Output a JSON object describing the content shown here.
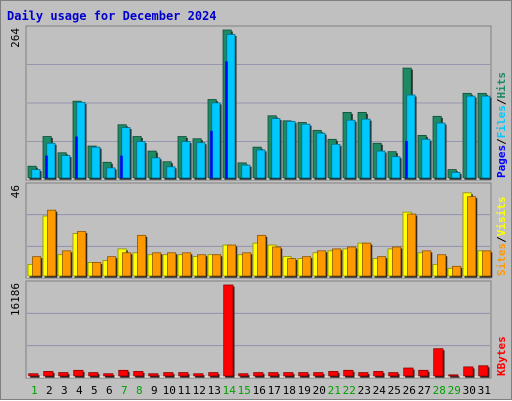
{
  "title": "Daily usage for December 2024",
  "chart_data": [
    {
      "type": "bar",
      "panel": "hits-files-pages",
      "ymax_label": "264",
      "ylim": [
        0,
        264
      ],
      "categories": [
        "1",
        "2",
        "3",
        "4",
        "5",
        "6",
        "7",
        "8",
        "9",
        "10",
        "11",
        "12",
        "13",
        "14",
        "15",
        "16",
        "17",
        "18",
        "19",
        "20",
        "21",
        "22",
        "23",
        "24",
        "25",
        "26",
        "27",
        "28",
        "29",
        "30",
        "31"
      ],
      "series": [
        {
          "name": "Hits",
          "color": "#1e8a64",
          "values": [
            21,
            74,
            45,
            137,
            57,
            28,
            95,
            74,
            48,
            29,
            74,
            70,
            140,
            264,
            27,
            55,
            111,
            102,
            99,
            85,
            69,
            117,
            117,
            62,
            47,
            196,
            76,
            110,
            15,
            151,
            151
          ]
        },
        {
          "name": "Files",
          "color": "#00c8ff",
          "values": [
            15,
            62,
            40,
            135,
            55,
            18,
            90,
            65,
            36,
            20,
            65,
            63,
            134,
            256,
            23,
            50,
            106,
            101,
            96,
            80,
            60,
            103,
            105,
            48,
            38,
            148,
            69,
            98,
            10,
            146,
            146
          ]
        },
        {
          "name": "Pages",
          "color": "#0000ff",
          "values": [
            0,
            40,
            0,
            74,
            0,
            0,
            40,
            0,
            0,
            0,
            0,
            0,
            84,
            208,
            0,
            0,
            0,
            0,
            0,
            0,
            0,
            0,
            0,
            0,
            0,
            66,
            0,
            0,
            0,
            0,
            0
          ]
        }
      ],
      "side_labels": [
        {
          "text": "Pages",
          "color": "#0000ff"
        },
        {
          "text": "/",
          "color": "#000000"
        },
        {
          "text": "Files",
          "color": "#00c8ff"
        },
        {
          "text": "/",
          "color": "#000000"
        },
        {
          "text": "Hits",
          "color": "#1e8a64"
        }
      ]
    },
    {
      "type": "bar",
      "panel": "visits-sites",
      "ymax_label": "46",
      "ylim": [
        0,
        46
      ],
      "categories": [
        "1",
        "2",
        "3",
        "4",
        "5",
        "6",
        "7",
        "8",
        "9",
        "10",
        "11",
        "12",
        "13",
        "14",
        "15",
        "16",
        "17",
        "18",
        "19",
        "20",
        "21",
        "22",
        "23",
        "24",
        "25",
        "26",
        "27",
        "28",
        "29",
        "30",
        "31"
      ],
      "series": [
        {
          "name": "Visits",
          "color": "#ffff00",
          "values": [
            6,
            31,
            11,
            22,
            7,
            8,
            14,
            12,
            11,
            11,
            11,
            10,
            11,
            16,
            11,
            17,
            16,
            10,
            9,
            12,
            13,
            14,
            17,
            9,
            14,
            33,
            12,
            6,
            4,
            43,
            13
          ]
        },
        {
          "name": "Sites",
          "color": "#ff9900",
          "values": [
            10,
            34,
            13,
            23,
            7,
            10,
            12,
            21,
            12,
            12,
            12,
            11,
            11,
            16,
            12,
            21,
            15,
            9,
            10,
            13,
            14,
            15,
            17,
            10,
            15,
            32,
            13,
            11,
            5,
            41,
            13
          ]
        }
      ],
      "side_labels": [
        {
          "text": "Sites",
          "color": "#ff9900"
        },
        {
          "text": "/",
          "color": "#000000"
        },
        {
          "text": "Visits",
          "color": "#ffff00"
        }
      ]
    },
    {
      "type": "bar",
      "panel": "kbytes",
      "ymax_label": "16186",
      "ylim": [
        0,
        16186
      ],
      "categories": [
        "1",
        "2",
        "3",
        "4",
        "5",
        "6",
        "7",
        "8",
        "9",
        "10",
        "11",
        "12",
        "13",
        "14",
        "15",
        "16",
        "17",
        "18",
        "19",
        "20",
        "21",
        "22",
        "23",
        "24",
        "25",
        "26",
        "27",
        "28",
        "29",
        "30",
        "31"
      ],
      "series": [
        {
          "name": "KBytes",
          "color": "#ff0000",
          "values": [
            404,
            809,
            607,
            1011,
            607,
            404,
            1011,
            809,
            404,
            607,
            607,
            404,
            607,
            16186,
            404,
            607,
            607,
            607,
            607,
            607,
            809,
            1011,
            607,
            809,
            607,
            1416,
            1011,
            4856,
            202,
            1619,
            1821
          ]
        }
      ],
      "side_labels": [
        {
          "text": "KBytes",
          "color": "#ff0000"
        }
      ]
    }
  ],
  "xaxis": {
    "labels": [
      "1",
      "2",
      "3",
      "4",
      "5",
      "6",
      "7",
      "8",
      "9",
      "10",
      "11",
      "12",
      "13",
      "14",
      "15",
      "16",
      "17",
      "18",
      "19",
      "20",
      "21",
      "22",
      "23",
      "24",
      "25",
      "26",
      "27",
      "28",
      "29",
      "30",
      "31"
    ],
    "weekend_days": [
      "1",
      "7",
      "8",
      "14",
      "15",
      "21",
      "22",
      "28",
      "29"
    ],
    "weekend_color": "#00a000",
    "weekday_color": "#000000"
  }
}
